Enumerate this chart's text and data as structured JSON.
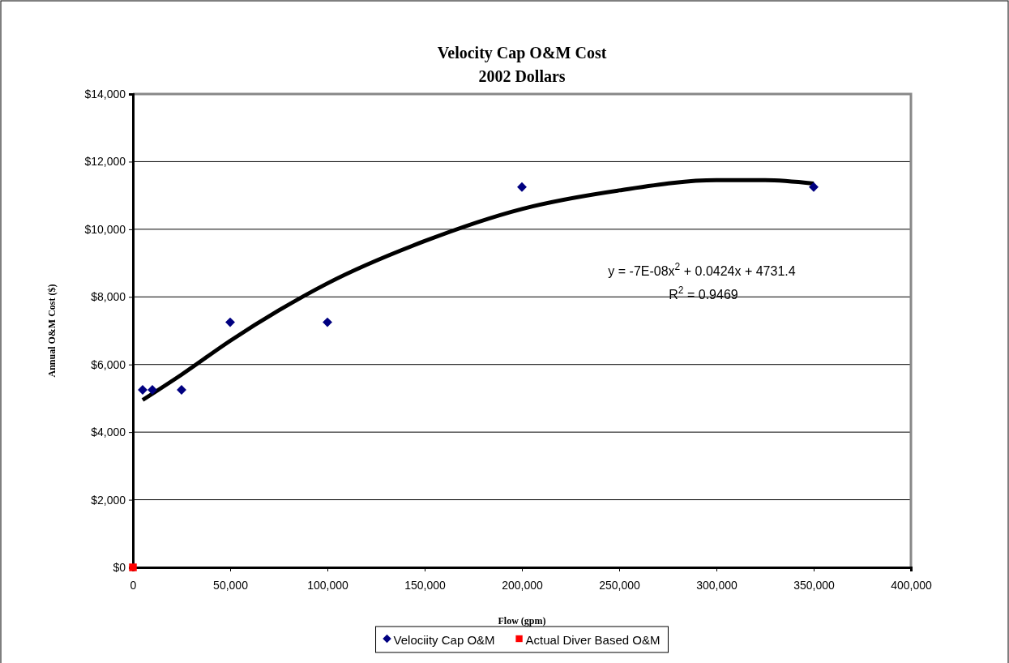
{
  "chart_data": {
    "type": "scatter",
    "title": "Velocity Cap O&M Cost",
    "subtitle": "2002 Dollars",
    "xlabel": "Flow (gpm)",
    "ylabel": "Annual O&M Cost ($)",
    "xlim": [
      0,
      400000
    ],
    "xticks": [
      {
        "value": 0,
        "label": "0"
      },
      {
        "value": 50000,
        "label": "50,000"
      },
      {
        "value": 100000,
        "label": "100,000"
      },
      {
        "value": 150000,
        "label": "150,000"
      },
      {
        "value": 200000,
        "label": "200,000"
      },
      {
        "value": 250000,
        "label": "250,000"
      },
      {
        "value": 300000,
        "label": "300,000"
      },
      {
        "value": 350000,
        "label": "350,000"
      },
      {
        "value": 400000,
        "label": "400,000"
      }
    ],
    "ylim": [
      0,
      14000
    ],
    "yticks": [
      {
        "value": 0,
        "label": "$0"
      },
      {
        "value": 2000,
        "label": "$2,000"
      },
      {
        "value": 4000,
        "label": "$4,000"
      },
      {
        "value": 6000,
        "label": "$6,000"
      },
      {
        "value": 8000,
        "label": "$8,000"
      },
      {
        "value": 10000,
        "label": "$10,000"
      },
      {
        "value": 12000,
        "label": "$12,000"
      },
      {
        "value": 14000,
        "label": "$14,000"
      }
    ],
    "grid": "y",
    "legend": "bottom",
    "series": [
      {
        "name": "Velociity Cap O&M",
        "color": "#000080",
        "marker": "diamond",
        "x": [
          5000,
          10000,
          25000,
          50000,
          100000,
          200000,
          350000
        ],
        "values": [
          5250,
          5250,
          5250,
          7250,
          7250,
          11250,
          11250
        ]
      },
      {
        "name": "Actual Diver Based O&M",
        "color": "#ff0000",
        "marker": "square",
        "x": [
          0
        ],
        "values": [
          0
        ]
      },
      {
        "type": "line",
        "color": "#000000",
        "marker": "none",
        "x": [
          5000,
          25000,
          50000,
          75000,
          100000,
          150000,
          200000,
          250000,
          300000,
          325000,
          350000
        ],
        "values": [
          4950,
          5700,
          6700,
          7600,
          8400,
          9650,
          10600,
          11150,
          11450,
          11450,
          11350
        ]
      }
    ],
    "annotations": [
      "y = -7E-08x$^{2}$ + 0.0424x + 4731.4",
      "R$^{2}$ = 0.9469"
    ]
  }
}
